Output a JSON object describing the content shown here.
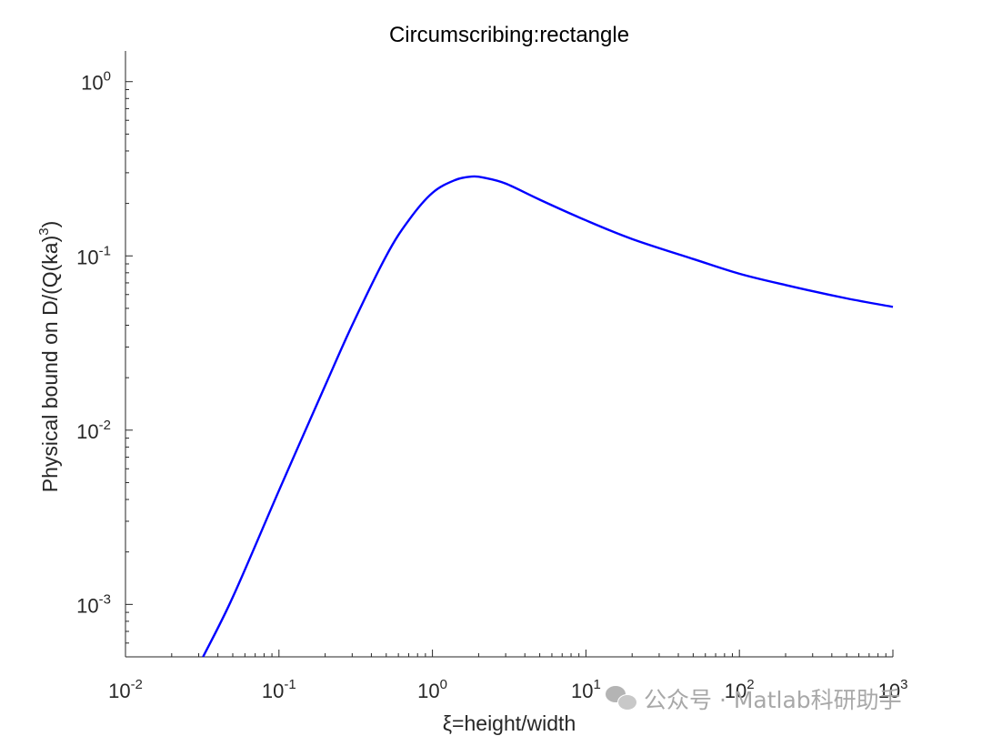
{
  "chart_data": {
    "type": "line",
    "title": "Circumscribing:rectangle",
    "xlabel": "ξ=height/width",
    "ylabel": "Physical bound on D/(Q(ka)³)",
    "ylabel_base": "Physical bound on D/(Q(ka)",
    "ylabel_exp": "3",
    "ylabel_tail": ")",
    "xscale": "log",
    "yscale": "log",
    "xlim": [
      0.01,
      1000
    ],
    "ylim": [
      0.0005,
      1.5
    ],
    "grid": false,
    "xticks": [
      {
        "value": 0.01,
        "base": "10",
        "exp": "-2"
      },
      {
        "value": 0.1,
        "base": "10",
        "exp": "-1"
      },
      {
        "value": 1,
        "base": "10",
        "exp": "0"
      },
      {
        "value": 10,
        "base": "10",
        "exp": "1"
      },
      {
        "value": 100,
        "base": "10",
        "exp": "2"
      },
      {
        "value": 1000,
        "base": "10",
        "exp": "3"
      }
    ],
    "yticks": [
      {
        "value": 0.001,
        "base": "10",
        "exp": "-3"
      },
      {
        "value": 0.01,
        "base": "10",
        "exp": "-2"
      },
      {
        "value": 0.1,
        "base": "10",
        "exp": "-1"
      },
      {
        "value": 1,
        "base": "10",
        "exp": "0"
      }
    ],
    "series": [
      {
        "color": "#0000ff",
        "x": [
          0.032,
          0.05,
          0.1,
          0.2,
          0.3,
          0.5,
          0.7,
          1.0,
          1.4,
          1.8,
          2.2,
          3,
          5,
          10,
          20,
          50,
          100,
          200,
          500,
          1000
        ],
        "y": [
          0.0005,
          0.0011,
          0.0045,
          0.018,
          0.04,
          0.1,
          0.16,
          0.23,
          0.272,
          0.285,
          0.28,
          0.26,
          0.21,
          0.16,
          0.125,
          0.096,
          0.079,
          0.068,
          0.057,
          0.051
        ]
      }
    ]
  },
  "watermark": {
    "icon": "wechat-icon",
    "text": "公众号 · Matlab科研助手"
  }
}
